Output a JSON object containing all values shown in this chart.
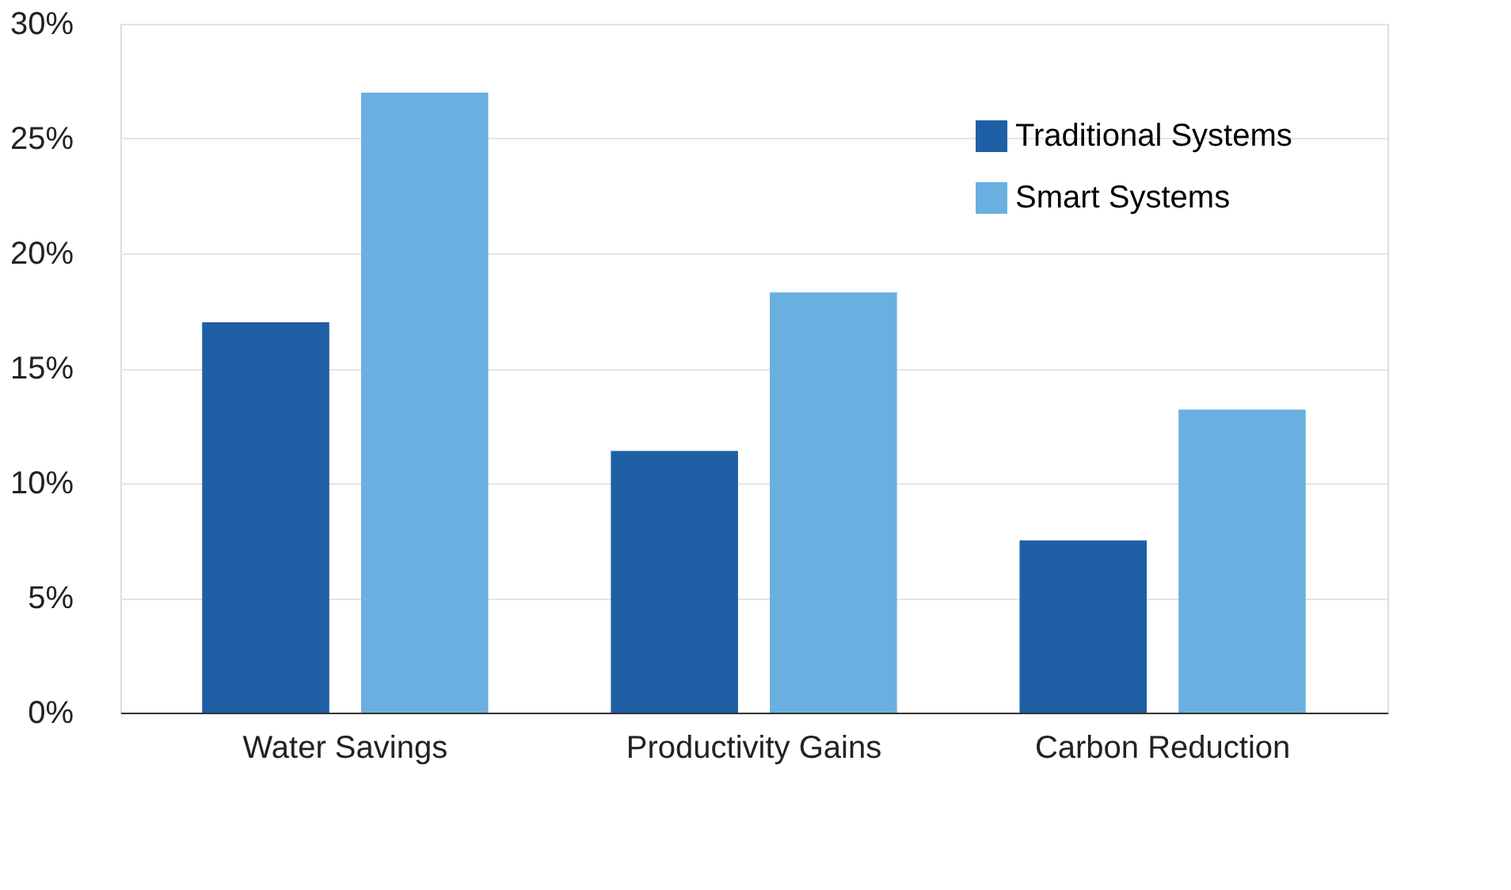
{
  "chart_data": {
    "type": "bar",
    "categories": [
      "Water Savings",
      "Productivity Gains",
      "Carbon Reduction"
    ],
    "series": [
      {
        "name": "Traditional Systems",
        "color": "#1f5fa6",
        "values": [
          17,
          11.4,
          7.5
        ]
      },
      {
        "name": "Smart Systems",
        "color": "#69b0e0",
        "values": [
          27,
          18.3,
          13.2
        ]
      }
    ],
    "ylim": [
      0,
      30
    ],
    "yticks": [
      {
        "value": 0,
        "label": "0%"
      },
      {
        "value": 5,
        "label": "5%"
      },
      {
        "value": 10,
        "label": "10%"
      },
      {
        "value": 15,
        "label": "15%"
      },
      {
        "value": 20,
        "label": "20%"
      },
      {
        "value": 25,
        "label": "25%"
      },
      {
        "value": 30,
        "label": "30%"
      }
    ],
    "grid": "y",
    "legend": "top right"
  }
}
